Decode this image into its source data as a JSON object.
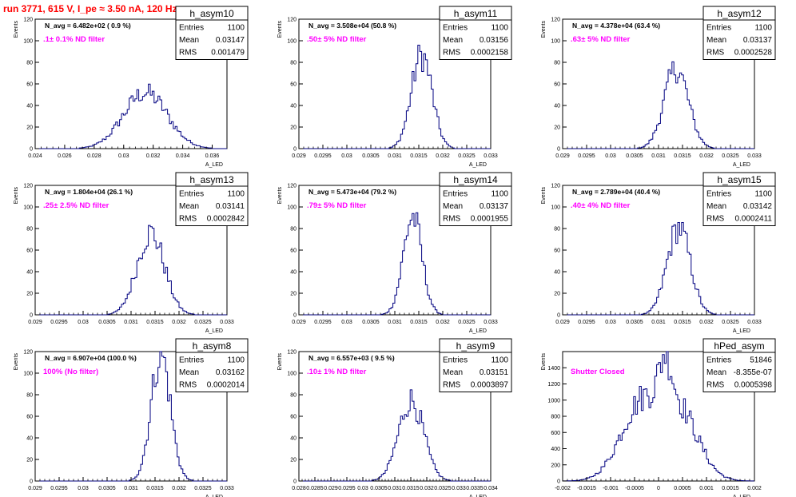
{
  "run_title": "run 3771,   615 V, I_pe ≈ 3.50 nA, 120 Hz",
  "colors": {
    "histogram": "#000080",
    "annotation": "#ff00ff",
    "run_title": "#ff0000",
    "axis": "#000000"
  },
  "stats_labels": {
    "entries": "Entries",
    "mean": "Mean",
    "rms": "RMS"
  },
  "chart_data": [
    {
      "type": "histogram",
      "title": "h_asym10",
      "navg": "N_avg = 6.482e+02 ( 0.9 %)",
      "annotation": ".1± 0.1% ND filter",
      "xlabel": "A_LED",
      "ylabel": "Events",
      "stats": {
        "entries": "1100",
        "mean": "0.03147",
        "rms": "0.001479"
      },
      "xlim": [
        0.024,
        0.037
      ],
      "ylim": [
        0,
        120
      ],
      "xticks": [
        0.024,
        0.026,
        0.028,
        0.03,
        0.032,
        0.034,
        0.036
      ],
      "xtick_labels": [
        "0.024",
        "0.026",
        "0.028",
        "0.03",
        "0.032",
        "0.034",
        "0.036"
      ],
      "yticks": [
        0,
        20,
        40,
        60,
        80,
        100,
        120
      ],
      "bins": {
        "mean": 0.03147,
        "sigma": 0.001479,
        "entries": 1100,
        "width": 0.00013,
        "peak": 52
      }
    },
    {
      "type": "histogram",
      "title": "h_asym11",
      "navg": "N_avg = 3.508e+04 (50.8 %)",
      "annotation": ".50± 5% ND filter",
      "xlabel": "A_LED",
      "ylabel": "Events",
      "stats": {
        "entries": "1100",
        "mean": "0.03156",
        "rms": "0.0002158"
      },
      "xlim": [
        0.029,
        0.033
      ],
      "ylim": [
        0,
        120
      ],
      "xticks": [
        0.029,
        0.0295,
        0.03,
        0.0305,
        0.031,
        0.0315,
        0.032,
        0.0325,
        0.033
      ],
      "xtick_labels": [
        "0.029",
        "0.0295",
        "0.03",
        "0.0305",
        "0.031",
        "0.0315",
        "0.032",
        "0.0325",
        "0.033"
      ],
      "yticks": [
        0,
        20,
        40,
        60,
        80,
        100,
        120
      ],
      "bins": {
        "mean": 0.03156,
        "sigma": 0.0002158,
        "entries": 1100,
        "width": 4e-05,
        "peak": 87
      }
    },
    {
      "type": "histogram",
      "title": "h_asym12",
      "navg": "N_avg = 4.378e+04 (63.4 %)",
      "annotation": ".63± 5% ND filter",
      "xlabel": "A_LED",
      "ylabel": "Events",
      "stats": {
        "entries": "1100",
        "mean": "0.03137",
        "rms": "0.0002528"
      },
      "xlim": [
        0.029,
        0.033
      ],
      "ylim": [
        0,
        120
      ],
      "xticks": [
        0.029,
        0.0295,
        0.03,
        0.0305,
        0.031,
        0.0315,
        0.032,
        0.0325,
        0.033
      ],
      "xtick_labels": [
        "0.029",
        "0.0295",
        "0.03",
        "0.0305",
        "0.031",
        "0.0315",
        "0.032",
        "0.0325",
        "0.033"
      ],
      "yticks": [
        0,
        20,
        40,
        60,
        80,
        100,
        120
      ],
      "bins": {
        "mean": 0.03137,
        "sigma": 0.0002528,
        "entries": 1100,
        "width": 4e-05,
        "peak": 74
      }
    },
    {
      "type": "histogram",
      "title": "h_asym13",
      "navg": "N_avg = 1.804e+04 (26.1 %)",
      "annotation": ".25± 2.5% ND filter",
      "xlabel": "A_LED",
      "ylabel": "Events",
      "stats": {
        "entries": "1100",
        "mean": "0.03141",
        "rms": "0.0002842"
      },
      "xlim": [
        0.029,
        0.033
      ],
      "ylim": [
        0,
        120
      ],
      "xticks": [
        0.029,
        0.0295,
        0.03,
        0.0305,
        0.031,
        0.0315,
        0.032,
        0.0325,
        0.033
      ],
      "xtick_labels": [
        "0.029",
        "0.0295",
        "0.03",
        "0.0305",
        "0.031",
        "0.0315",
        "0.032",
        "0.0325",
        "0.033"
      ],
      "yticks": [
        0,
        20,
        40,
        60,
        80,
        100,
        120
      ],
      "bins": {
        "mean": 0.03141,
        "sigma": 0.0002842,
        "entries": 1100,
        "width": 4e-05,
        "peak": 76
      }
    },
    {
      "type": "histogram",
      "title": "h_asym14",
      "navg": "N_avg = 5.473e+04 (79.2 %)",
      "annotation": ".79± 5% ND filter",
      "xlabel": "A_LED",
      "ylabel": "Events",
      "stats": {
        "entries": "1100",
        "mean": "0.03137",
        "rms": "0.0001955"
      },
      "xlim": [
        0.029,
        0.033
      ],
      "ylim": [
        0,
        120
      ],
      "xticks": [
        0.029,
        0.0295,
        0.03,
        0.0305,
        0.031,
        0.0315,
        0.032,
        0.0325,
        0.033
      ],
      "xtick_labels": [
        "0.029",
        "0.0295",
        "0.03",
        "0.0305",
        "0.031",
        "0.0315",
        "0.032",
        "0.0325",
        "0.033"
      ],
      "yticks": [
        0,
        20,
        40,
        60,
        80,
        100,
        120
      ],
      "bins": {
        "mean": 0.03137,
        "sigma": 0.0001955,
        "entries": 1100,
        "width": 4e-05,
        "peak": 91
      }
    },
    {
      "type": "histogram",
      "title": "h_asym15",
      "navg": "N_avg = 2.789e+04 (40.4 %)",
      "annotation": ".40± 4% ND filter",
      "xlabel": "A_LED",
      "ylabel": "Events",
      "stats": {
        "entries": "1100",
        "mean": "0.03142",
        "rms": "0.0002411"
      },
      "xlim": [
        0.029,
        0.033
      ],
      "ylim": [
        0,
        120
      ],
      "xticks": [
        0.029,
        0.0295,
        0.03,
        0.0305,
        0.031,
        0.0315,
        0.032,
        0.0325,
        0.033
      ],
      "xtick_labels": [
        "0.029",
        "0.0295",
        "0.03",
        "0.0305",
        "0.031",
        "0.0315",
        "0.032",
        "0.0325",
        "0.033"
      ],
      "yticks": [
        0,
        20,
        40,
        60,
        80,
        100,
        120
      ],
      "bins": {
        "mean": 0.03142,
        "sigma": 0.0002411,
        "entries": 1100,
        "width": 4e-05,
        "peak": 81
      }
    },
    {
      "type": "histogram",
      "title": "h_asym8",
      "navg": "N_avg = 6.907e+04 (100.0 %)",
      "annotation": "100% (No filter)",
      "xlabel": "A_LED",
      "ylabel": "Events",
      "stats": {
        "entries": "1100",
        "mean": "0.03162",
        "rms": "0.0002014"
      },
      "xlim": [
        0.029,
        0.033
      ],
      "ylim": [
        0,
        120
      ],
      "xticks": [
        0.029,
        0.0295,
        0.03,
        0.0305,
        0.031,
        0.0315,
        0.032,
        0.0325,
        0.033
      ],
      "xtick_labels": [
        "0.029",
        "0.0295",
        "0.03",
        "0.0305",
        "0.031",
        "0.0315",
        "0.032",
        "0.0325",
        "0.033"
      ],
      "yticks": [
        0,
        20,
        40,
        60,
        80,
        100,
        120
      ],
      "bins": {
        "mean": 0.03162,
        "sigma": 0.0002014,
        "entries": 1100,
        "width": 4e-05,
        "peak": 118
      }
    },
    {
      "type": "histogram",
      "title": "h_asym9",
      "navg": "N_avg = 6.557e+03 ( 9.5 %)",
      "annotation": ".10± 1% ND filter",
      "xlabel": "A_LED",
      "ylabel": "Events",
      "stats": {
        "entries": "1100",
        "mean": "0.03151",
        "rms": "0.0003897"
      },
      "xlim": [
        0.028,
        0.034
      ],
      "ylim": [
        0,
        120
      ],
      "xticks": [
        0.028,
        0.0285,
        0.029,
        0.0295,
        0.03,
        0.0305,
        0.031,
        0.0315,
        0.032,
        0.0325,
        0.033,
        0.0335,
        0.034
      ],
      "xtick_labels": [
        "0.028",
        "0.0285",
        "0.029",
        "0.0295",
        "0.03",
        "0.0305",
        "0.031",
        "0.0315",
        "0.032",
        "0.0325",
        "0.033",
        "0.0335",
        "0.034"
      ],
      "yticks": [
        0,
        20,
        40,
        60,
        80,
        100,
        120
      ],
      "bins": {
        "mean": 0.03151,
        "sigma": 0.0003897,
        "entries": 1100,
        "width": 6e-05,
        "peak": 75
      }
    },
    {
      "type": "histogram",
      "title": "hPed_asym",
      "navg": "",
      "annotation": "Shutter Closed",
      "xlabel": "A_LED",
      "ylabel": "Events",
      "stats": {
        "entries": "51846",
        "mean": "-8.355e-07",
        "rms": "0.0005398"
      },
      "xlim": [
        -0.002,
        0.002
      ],
      "ylim": [
        0,
        1600
      ],
      "xticks": [
        -0.002,
        -0.0015,
        -0.001,
        -0.0005,
        0,
        0.0005,
        0.001,
        0.0015,
        0.002
      ],
      "xtick_labels": [
        "-0.002",
        "-0.0015",
        "-0.001",
        "-0.0005",
        "0",
        "0.0005",
        "0.001",
        "0.0015",
        "0.002"
      ],
      "yticks": [
        0,
        200,
        400,
        600,
        800,
        1000,
        1200,
        1400
      ],
      "bins": {
        "mean": -8.4e-07,
        "sigma": 0.0005398,
        "entries": 51846,
        "width": 4e-05,
        "peak": 1510,
        "shape": "pedestal"
      }
    }
  ]
}
